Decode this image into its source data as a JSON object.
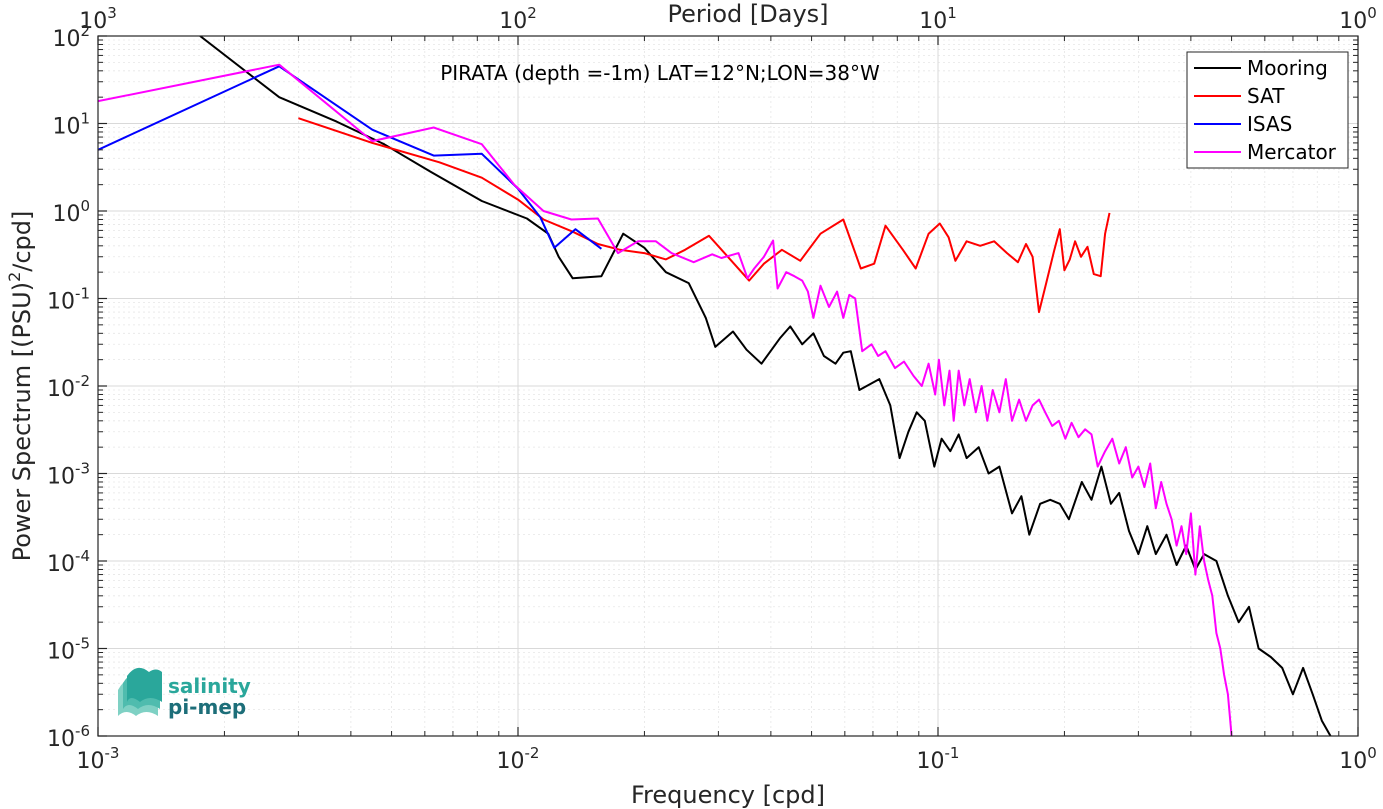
{
  "chart_data": {
    "type": "line",
    "title": "PIRATA (depth =-1m) LAT=12°N;LON=38°W",
    "xlabel": "Frequency [cpd]",
    "ylabel_main": "Power Spectrum [(PSU)",
    "ylabel_sup": "2",
    "ylabel_tail": "/cpd]",
    "top_xlabel": "Period [Days]",
    "xscale": "log",
    "yscale": "log",
    "xlim": [
      0.001,
      1
    ],
    "ylim": [
      1e-06,
      100
    ],
    "grid": true,
    "legend_position": "top-right",
    "x_ticks": [
      {
        "base": "10",
        "exp": "-3"
      },
      {
        "base": "10",
        "exp": "-2"
      },
      {
        "base": "10",
        "exp": "-1"
      },
      {
        "base": "10",
        "exp": "0"
      }
    ],
    "top_ticks": [
      {
        "base": "10",
        "exp": "3"
      },
      {
        "base": "10",
        "exp": "2"
      },
      {
        "base": "10",
        "exp": "1"
      },
      {
        "base": "10",
        "exp": "0"
      }
    ],
    "y_ticks": [
      {
        "base": "10",
        "exp": "2"
      },
      {
        "base": "10",
        "exp": "1"
      },
      {
        "base": "10",
        "exp": "0"
      },
      {
        "base": "10",
        "exp": "-1"
      },
      {
        "base": "10",
        "exp": "-2"
      },
      {
        "base": "10",
        "exp": "-3"
      },
      {
        "base": "10",
        "exp": "-4"
      },
      {
        "base": "10",
        "exp": "-5"
      },
      {
        "base": "10",
        "exp": "-6"
      }
    ],
    "series": [
      {
        "name": "Mooring",
        "color": "#000000",
        "points": [
          [
            0.00175,
            100
          ],
          [
            0.0027,
            20
          ],
          [
            0.0037,
            10.5
          ],
          [
            0.0048,
            5.8
          ],
          [
            0.0062,
            2.8
          ],
          [
            0.0082,
            1.3
          ],
          [
            0.0105,
            0.82
          ],
          [
            0.0118,
            0.55
          ],
          [
            0.0125,
            0.3
          ],
          [
            0.0135,
            0.17
          ],
          [
            0.0158,
            0.18
          ],
          [
            0.0178,
            0.55
          ],
          [
            0.02,
            0.38
          ],
          [
            0.0225,
            0.2
          ],
          [
            0.0255,
            0.15
          ],
          [
            0.028,
            0.06
          ],
          [
            0.0295,
            0.028
          ],
          [
            0.0325,
            0.042
          ],
          [
            0.035,
            0.026
          ],
          [
            0.038,
            0.018
          ],
          [
            0.042,
            0.035
          ],
          [
            0.0445,
            0.048
          ],
          [
            0.0475,
            0.03
          ],
          [
            0.0505,
            0.04
          ],
          [
            0.0535,
            0.022
          ],
          [
            0.057,
            0.018
          ],
          [
            0.0595,
            0.024
          ],
          [
            0.062,
            0.025
          ],
          [
            0.065,
            0.009
          ],
          [
            0.0725,
            0.012
          ],
          [
            0.077,
            0.006
          ],
          [
            0.081,
            0.0015
          ],
          [
            0.085,
            0.003
          ],
          [
            0.089,
            0.005
          ],
          [
            0.093,
            0.004
          ],
          [
            0.098,
            0.0012
          ],
          [
            0.102,
            0.0025
          ],
          [
            0.107,
            0.0018
          ],
          [
            0.112,
            0.0028
          ],
          [
            0.117,
            0.0015
          ],
          [
            0.125,
            0.002
          ],
          [
            0.132,
            0.001
          ],
          [
            0.14,
            0.0012
          ],
          [
            0.15,
            0.00035
          ],
          [
            0.158,
            0.00055
          ],
          [
            0.165,
            0.0002
          ],
          [
            0.175,
            0.00045
          ],
          [
            0.185,
            0.0005
          ],
          [
            0.195,
            0.00045
          ],
          [
            0.205,
            0.0003
          ],
          [
            0.22,
            0.0008
          ],
          [
            0.232,
            0.0005
          ],
          [
            0.245,
            0.0012
          ],
          [
            0.258,
            0.00045
          ],
          [
            0.27,
            0.0006
          ],
          [
            0.285,
            0.00022
          ],
          [
            0.3,
            0.00012
          ],
          [
            0.315,
            0.00025
          ],
          [
            0.33,
            0.00012
          ],
          [
            0.35,
            0.0002
          ],
          [
            0.37,
            9e-05
          ],
          [
            0.39,
            0.00015
          ],
          [
            0.41,
            8e-05
          ],
          [
            0.43,
            0.00012
          ],
          [
            0.46,
            0.0001
          ],
          [
            0.49,
            4e-05
          ],
          [
            0.52,
            2e-05
          ],
          [
            0.55,
            3e-05
          ],
          [
            0.58,
            1e-05
          ],
          [
            0.62,
            8e-06
          ],
          [
            0.66,
            6e-06
          ],
          [
            0.7,
            3e-06
          ],
          [
            0.74,
            6e-06
          ],
          [
            0.78,
            3e-06
          ],
          [
            0.82,
            1.5e-06
          ],
          [
            0.86,
            1e-06
          ]
        ]
      },
      {
        "name": "SAT",
        "color": "#ff0000",
        "points": [
          [
            0.003,
            11.5
          ],
          [
            0.0045,
            6
          ],
          [
            0.0065,
            3.6
          ],
          [
            0.0082,
            2.4
          ],
          [
            0.01,
            1.35
          ],
          [
            0.0115,
            0.8
          ],
          [
            0.0135,
            0.58
          ],
          [
            0.0155,
            0.42
          ],
          [
            0.0175,
            0.36
          ],
          [
            0.02,
            0.33
          ],
          [
            0.0225,
            0.28
          ],
          [
            0.025,
            0.36
          ],
          [
            0.0285,
            0.52
          ],
          [
            0.032,
            0.28
          ],
          [
            0.0355,
            0.16
          ],
          [
            0.0385,
            0.25
          ],
          [
            0.0425,
            0.36
          ],
          [
            0.047,
            0.27
          ],
          [
            0.0525,
            0.55
          ],
          [
            0.0595,
            0.8
          ],
          [
            0.0655,
            0.22
          ],
          [
            0.0705,
            0.25
          ],
          [
            0.075,
            0.68
          ],
          [
            0.0825,
            0.36
          ],
          [
            0.0885,
            0.22
          ],
          [
            0.095,
            0.55
          ],
          [
            0.101,
            0.72
          ],
          [
            0.106,
            0.5
          ],
          [
            0.11,
            0.27
          ],
          [
            0.117,
            0.45
          ],
          [
            0.126,
            0.4
          ],
          [
            0.136,
            0.45
          ],
          [
            0.146,
            0.33
          ],
          [
            0.155,
            0.26
          ],
          [
            0.162,
            0.42
          ],
          [
            0.168,
            0.3
          ],
          [
            0.174,
            0.07
          ],
          [
            0.181,
            0.15
          ],
          [
            0.189,
            0.35
          ],
          [
            0.195,
            0.62
          ],
          [
            0.2,
            0.21
          ],
          [
            0.206,
            0.28
          ],
          [
            0.212,
            0.45
          ],
          [
            0.219,
            0.3
          ],
          [
            0.227,
            0.39
          ],
          [
            0.235,
            0.19
          ],
          [
            0.244,
            0.18
          ],
          [
            0.25,
            0.55
          ],
          [
            0.256,
            0.95
          ]
        ]
      },
      {
        "name": "ISAS",
        "color": "#0000ff",
        "points": [
          [
            0.001,
            5
          ],
          [
            0.0027,
            45
          ],
          [
            0.0045,
            8.5
          ],
          [
            0.0063,
            4.3
          ],
          [
            0.0082,
            4.5
          ],
          [
            0.01,
            1.8
          ],
          [
            0.0113,
            0.85
          ],
          [
            0.0122,
            0.38
          ],
          [
            0.0137,
            0.62
          ],
          [
            0.0158,
            0.37
          ]
        ]
      },
      {
        "name": "Mercator",
        "color": "#ff00ff",
        "points": [
          [
            0.001,
            18
          ],
          [
            0.0027,
            47
          ],
          [
            0.0045,
            6.3
          ],
          [
            0.0063,
            9
          ],
          [
            0.0082,
            5.8
          ],
          [
            0.0098,
            2
          ],
          [
            0.0115,
            1
          ],
          [
            0.0134,
            0.8
          ],
          [
            0.0155,
            0.82
          ],
          [
            0.0173,
            0.33
          ],
          [
            0.0193,
            0.45
          ],
          [
            0.0213,
            0.45
          ],
          [
            0.0232,
            0.33
          ],
          [
            0.0262,
            0.26
          ],
          [
            0.029,
            0.32
          ],
          [
            0.0305,
            0.29
          ],
          [
            0.0335,
            0.33
          ],
          [
            0.0352,
            0.17
          ],
          [
            0.0365,
            0.22
          ],
          [
            0.0385,
            0.3
          ],
          [
            0.0405,
            0.46
          ],
          [
            0.0415,
            0.13
          ],
          [
            0.0435,
            0.2
          ],
          [
            0.0455,
            0.18
          ],
          [
            0.0475,
            0.16
          ],
          [
            0.049,
            0.12
          ],
          [
            0.0505,
            0.06
          ],
          [
            0.0525,
            0.14
          ],
          [
            0.055,
            0.08
          ],
          [
            0.0575,
            0.12
          ],
          [
            0.0595,
            0.06
          ],
          [
            0.0615,
            0.11
          ],
          [
            0.0635,
            0.1
          ],
          [
            0.066,
            0.025
          ],
          [
            0.0695,
            0.03
          ],
          [
            0.072,
            0.022
          ],
          [
            0.075,
            0.025
          ],
          [
            0.079,
            0.016
          ],
          [
            0.083,
            0.019
          ],
          [
            0.0875,
            0.013
          ],
          [
            0.0915,
            0.01
          ],
          [
            0.095,
            0.018
          ],
          [
            0.0985,
            0.008
          ],
          [
            0.1005,
            0.02
          ],
          [
            0.1035,
            0.006
          ],
          [
            0.1065,
            0.015
          ],
          [
            0.109,
            0.004
          ],
          [
            0.112,
            0.015
          ],
          [
            0.1155,
            0.006
          ],
          [
            0.119,
            0.012
          ],
          [
            0.123,
            0.005
          ],
          [
            0.127,
            0.01
          ],
          [
            0.131,
            0.004
          ],
          [
            0.135,
            0.009
          ],
          [
            0.14,
            0.005
          ],
          [
            0.145,
            0.012
          ],
          [
            0.15,
            0.004
          ],
          [
            0.156,
            0.007
          ],
          [
            0.162,
            0.004
          ],
          [
            0.168,
            0.006
          ],
          [
            0.174,
            0.007
          ],
          [
            0.18,
            0.005
          ],
          [
            0.187,
            0.0035
          ],
          [
            0.194,
            0.004
          ],
          [
            0.201,
            0.0025
          ],
          [
            0.208,
            0.0038
          ],
          [
            0.216,
            0.0026
          ],
          [
            0.224,
            0.0032
          ],
          [
            0.232,
            0.0028
          ],
          [
            0.24,
            0.0012
          ],
          [
            0.25,
            0.0018
          ],
          [
            0.26,
            0.0025
          ],
          [
            0.27,
            0.0013
          ],
          [
            0.28,
            0.002
          ],
          [
            0.29,
            0.0009
          ],
          [
            0.3,
            0.0012
          ],
          [
            0.31,
            0.0007
          ],
          [
            0.32,
            0.0013
          ],
          [
            0.33,
            0.0004
          ],
          [
            0.34,
            0.0008
          ],
          [
            0.35,
            0.00045
          ],
          [
            0.36,
            0.0003
          ],
          [
            0.37,
            0.00015
          ],
          [
            0.38,
            0.00025
          ],
          [
            0.39,
            0.00012
          ],
          [
            0.4,
            0.00035
          ],
          [
            0.41,
            7e-05
          ],
          [
            0.42,
            0.00025
          ],
          [
            0.43,
            0.0001
          ],
          [
            0.44,
            6e-05
          ],
          [
            0.45,
            4e-05
          ],
          [
            0.46,
            1.5e-05
          ],
          [
            0.47,
            1e-05
          ],
          [
            0.48,
            5e-06
          ],
          [
            0.49,
            3e-06
          ],
          [
            0.5,
            1e-06
          ]
        ]
      }
    ]
  },
  "logo": {
    "line1": "salinity",
    "line2": "pi-mep",
    "color": "#2aa79b"
  }
}
